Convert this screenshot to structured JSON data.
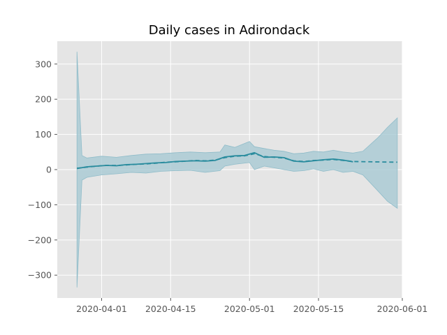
{
  "chart_data": {
    "type": "line",
    "title": "Daily cases in Adirondack",
    "xlabel": "",
    "ylabel": "",
    "x_axis_type": "date",
    "xlim": [
      "2020-03-23",
      "2020-06-01"
    ],
    "ylim": [
      -365,
      365
    ],
    "grid": true,
    "legend": "none",
    "x_ticks": [
      "2020-04-01",
      "2020-04-15",
      "2020-05-01",
      "2020-05-15",
      "2020-06-01"
    ],
    "y_ticks": [
      -300,
      -200,
      -100,
      0,
      100,
      200,
      300
    ],
    "colors": {
      "background": "#e5e5e5",
      "grid": "#ffffff",
      "line": "#2a8c9e",
      "band": "#a8c9d3"
    },
    "series": [
      {
        "style": "solid",
        "x": [
          "2020-03-27",
          "2020-03-29",
          "2020-03-31",
          "2020-04-02",
          "2020-04-04",
          "2020-04-06",
          "2020-04-08",
          "2020-04-10",
          "2020-04-12",
          "2020-04-14",
          "2020-04-16",
          "2020-04-18",
          "2020-04-20",
          "2020-04-22",
          "2020-04-24",
          "2020-04-26",
          "2020-04-28",
          "2020-04-30",
          "2020-05-02",
          "2020-05-04",
          "2020-05-06",
          "2020-05-08",
          "2020-05-10",
          "2020-05-12",
          "2020-05-14",
          "2020-05-16",
          "2020-05-18",
          "2020-05-20",
          "2020-05-22"
        ],
        "y": [
          3,
          8,
          10,
          12,
          11,
          14,
          15,
          17,
          19,
          20,
          23,
          24,
          25,
          24,
          26,
          36,
          39,
          40,
          48,
          35,
          36,
          34,
          24,
          22,
          25,
          28,
          30,
          27,
          22
        ]
      },
      {
        "style": "dashed",
        "x": [
          "2020-03-27",
          "2020-03-29",
          "2020-03-31",
          "2020-04-02",
          "2020-04-04",
          "2020-04-06",
          "2020-04-08",
          "2020-04-10",
          "2020-04-12",
          "2020-04-14",
          "2020-04-16",
          "2020-04-18",
          "2020-04-20",
          "2020-04-22",
          "2020-04-24",
          "2020-04-26",
          "2020-04-28",
          "2020-04-30",
          "2020-05-02",
          "2020-05-04",
          "2020-05-06",
          "2020-05-08",
          "2020-05-10",
          "2020-05-12",
          "2020-05-14",
          "2020-05-16",
          "2020-05-18",
          "2020-05-20",
          "2020-05-22",
          "2020-05-26",
          "2020-05-31"
        ],
        "y": [
          4,
          7,
          10,
          12,
          12,
          13,
          15,
          16,
          18,
          21,
          22,
          24,
          26,
          25,
          27,
          34,
          38,
          39,
          45,
          37,
          35,
          33,
          25,
          23,
          26,
          27,
          29,
          26,
          23,
          22,
          21
        ]
      }
    ],
    "band": {
      "x": [
        "2020-03-27",
        "2020-03-28",
        "2020-03-29",
        "2020-04-01",
        "2020-04-04",
        "2020-04-07",
        "2020-04-10",
        "2020-04-13",
        "2020-04-16",
        "2020-04-19",
        "2020-04-22",
        "2020-04-25",
        "2020-04-26",
        "2020-04-28",
        "2020-05-01",
        "2020-05-02",
        "2020-05-04",
        "2020-05-06",
        "2020-05-08",
        "2020-05-10",
        "2020-05-12",
        "2020-05-14",
        "2020-05-16",
        "2020-05-18",
        "2020-05-20",
        "2020-05-22",
        "2020-05-24",
        "2020-05-27",
        "2020-05-29",
        "2020-05-31"
      ],
      "upper": [
        335,
        40,
        33,
        38,
        35,
        40,
        44,
        45,
        48,
        50,
        48,
        50,
        70,
        63,
        80,
        65,
        60,
        55,
        52,
        45,
        47,
        52,
        50,
        55,
        50,
        47,
        52,
        90,
        120,
        147
      ],
      "lower": [
        -335,
        -30,
        -22,
        -15,
        -12,
        -8,
        -10,
        -5,
        -3,
        -2,
        -8,
        -3,
        10,
        15,
        20,
        0,
        10,
        5,
        0,
        -5,
        -3,
        2,
        -5,
        0,
        -8,
        -5,
        -15,
        -60,
        -90,
        -110
      ]
    }
  }
}
